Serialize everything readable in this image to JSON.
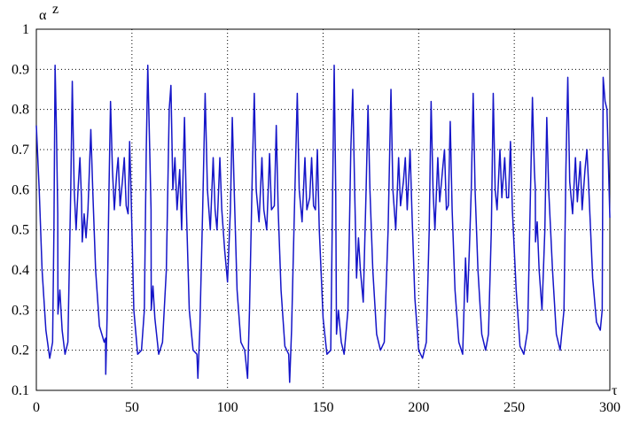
{
  "chart_data": {
    "type": "line",
    "ylabel": "α",
    "ylabel_sup": "z",
    "xlabel": "τ",
    "xlim": [
      0,
      300
    ],
    "xticks": [
      0,
      50,
      100,
      150,
      200,
      250,
      300
    ],
    "ylim": [
      0.1,
      1
    ],
    "yticks": [
      0.1,
      0.2,
      0.3,
      0.4,
      0.5,
      0.6,
      0.7,
      0.8,
      0.9,
      1
    ],
    "grid": true,
    "series": [
      {
        "color": "#1515c8",
        "x": [
          0,
          1.5,
          3,
          5,
          7,
          8.5,
          9.2,
          9.8,
          10.5,
          11.2,
          11.3,
          12.3,
          13.5,
          15,
          16.5,
          18,
          18.8,
          19.8,
          20.8,
          21.8,
          22.8,
          23.6,
          24,
          25,
          26,
          27,
          28.5,
          29.5,
          31,
          33,
          35.5,
          36.2,
          36.3,
          37,
          38,
          38.8,
          39.8,
          40.8,
          42,
          42.8,
          43.8,
          45,
          46,
          47,
          48,
          48.8,
          49.5,
          51,
          53,
          55,
          56.5,
          57.5,
          58.3,
          59.3,
          60,
          60.1,
          61,
          62,
          64,
          66,
          68,
          69.5,
          70.4,
          71.4,
          72.5,
          73.6,
          75,
          76,
          77.5,
          78.5,
          80,
          82,
          84,
          84.5,
          85.5,
          87,
          88.3,
          89.5,
          91,
          92.5,
          93.5,
          94.5,
          96,
          97,
          98.5,
          100,
          101.5,
          102.5,
          103.5,
          105,
          107,
          109,
          110.5,
          111.5,
          113,
          114,
          115,
          116.5,
          118,
          119,
          120.5,
          122,
          123,
          124.5,
          125.5,
          126.5,
          128,
          130,
          132,
          132.5,
          133.5,
          135,
          136.5,
          137.5,
          139,
          140.5,
          141.5,
          143,
          144,
          145,
          146,
          147,
          148,
          150,
          152,
          154,
          155,
          155.8,
          156.6,
          157,
          158,
          159.5,
          161,
          163,
          164.5,
          165.5,
          166.5,
          167.5,
          168.5,
          169.5,
          171,
          172.5,
          173.5,
          174.5,
          176,
          178,
          180,
          182,
          184,
          185.5,
          186.5,
          188,
          189.5,
          190.5,
          192,
          193,
          194,
          195.5,
          196.5,
          198,
          200,
          202,
          204,
          205.5,
          206.5,
          207.5,
          208.5,
          210,
          211,
          212.5,
          213.5,
          214.5,
          215.5,
          216.5,
          217.5,
          219,
          221,
          223,
          224.5,
          225.5,
          226.5,
          227.5,
          228.5,
          229.5,
          231,
          233,
          235,
          236.5,
          238,
          239,
          240,
          241,
          242.5,
          243.5,
          245,
          246,
          247,
          248,
          249,
          251,
          253,
          255,
          257,
          258.5,
          259.5,
          260.5,
          261,
          261.1,
          262,
          263,
          264.5,
          266,
          267,
          268,
          270,
          272,
          274,
          276,
          277,
          278,
          279,
          280.5,
          282,
          283,
          284.5,
          285.5,
          287,
          288,
          289,
          291,
          293,
          295,
          296,
          296.5,
          297.5,
          298.5,
          300
        ],
        "values": [
          0.76,
          0.6,
          0.4,
          0.25,
          0.18,
          0.22,
          0.5,
          0.91,
          0.75,
          0.54,
          0.29,
          0.35,
          0.25,
          0.19,
          0.22,
          0.6,
          0.87,
          0.6,
          0.5,
          0.6,
          0.68,
          0.58,
          0.47,
          0.54,
          0.48,
          0.55,
          0.75,
          0.6,
          0.4,
          0.26,
          0.22,
          0.23,
          0.14,
          0.28,
          0.6,
          0.82,
          0.65,
          0.55,
          0.64,
          0.68,
          0.56,
          0.62,
          0.68,
          0.56,
          0.54,
          0.72,
          0.6,
          0.3,
          0.19,
          0.2,
          0.3,
          0.7,
          0.91,
          0.7,
          0.55,
          0.3,
          0.36,
          0.28,
          0.19,
          0.22,
          0.4,
          0.8,
          0.86,
          0.6,
          0.68,
          0.55,
          0.65,
          0.5,
          0.78,
          0.55,
          0.3,
          0.2,
          0.19,
          0.13,
          0.25,
          0.55,
          0.84,
          0.6,
          0.5,
          0.68,
          0.55,
          0.5,
          0.68,
          0.55,
          0.45,
          0.37,
          0.55,
          0.78,
          0.6,
          0.35,
          0.22,
          0.2,
          0.13,
          0.3,
          0.65,
          0.84,
          0.6,
          0.52,
          0.68,
          0.55,
          0.5,
          0.69,
          0.55,
          0.56,
          0.76,
          0.55,
          0.35,
          0.21,
          0.19,
          0.12,
          0.25,
          0.55,
          0.84,
          0.6,
          0.52,
          0.68,
          0.55,
          0.58,
          0.68,
          0.56,
          0.55,
          0.7,
          0.5,
          0.28,
          0.19,
          0.2,
          0.6,
          0.91,
          0.6,
          0.24,
          0.3,
          0.22,
          0.19,
          0.3,
          0.7,
          0.85,
          0.6,
          0.38,
          0.48,
          0.4,
          0.32,
          0.6,
          0.81,
          0.6,
          0.4,
          0.24,
          0.2,
          0.22,
          0.5,
          0.85,
          0.6,
          0.5,
          0.68,
          0.56,
          0.62,
          0.68,
          0.55,
          0.7,
          0.54,
          0.33,
          0.2,
          0.18,
          0.22,
          0.5,
          0.82,
          0.6,
          0.5,
          0.68,
          0.57,
          0.65,
          0.7,
          0.55,
          0.56,
          0.77,
          0.55,
          0.35,
          0.22,
          0.19,
          0.43,
          0.32,
          0.45,
          0.6,
          0.84,
          0.6,
          0.4,
          0.24,
          0.2,
          0.24,
          0.5,
          0.84,
          0.6,
          0.55,
          0.7,
          0.58,
          0.68,
          0.58,
          0.58,
          0.72,
          0.55,
          0.35,
          0.21,
          0.19,
          0.25,
          0.6,
          0.83,
          0.65,
          0.6,
          0.47,
          0.52,
          0.4,
          0.3,
          0.5,
          0.78,
          0.6,
          0.4,
          0.24,
          0.2,
          0.3,
          0.65,
          0.88,
          0.62,
          0.54,
          0.68,
          0.57,
          0.67,
          0.55,
          0.65,
          0.7,
          0.6,
          0.38,
          0.27,
          0.25,
          0.3,
          0.88,
          0.82,
          0.8,
          0.53
        ]
      }
    ]
  }
}
